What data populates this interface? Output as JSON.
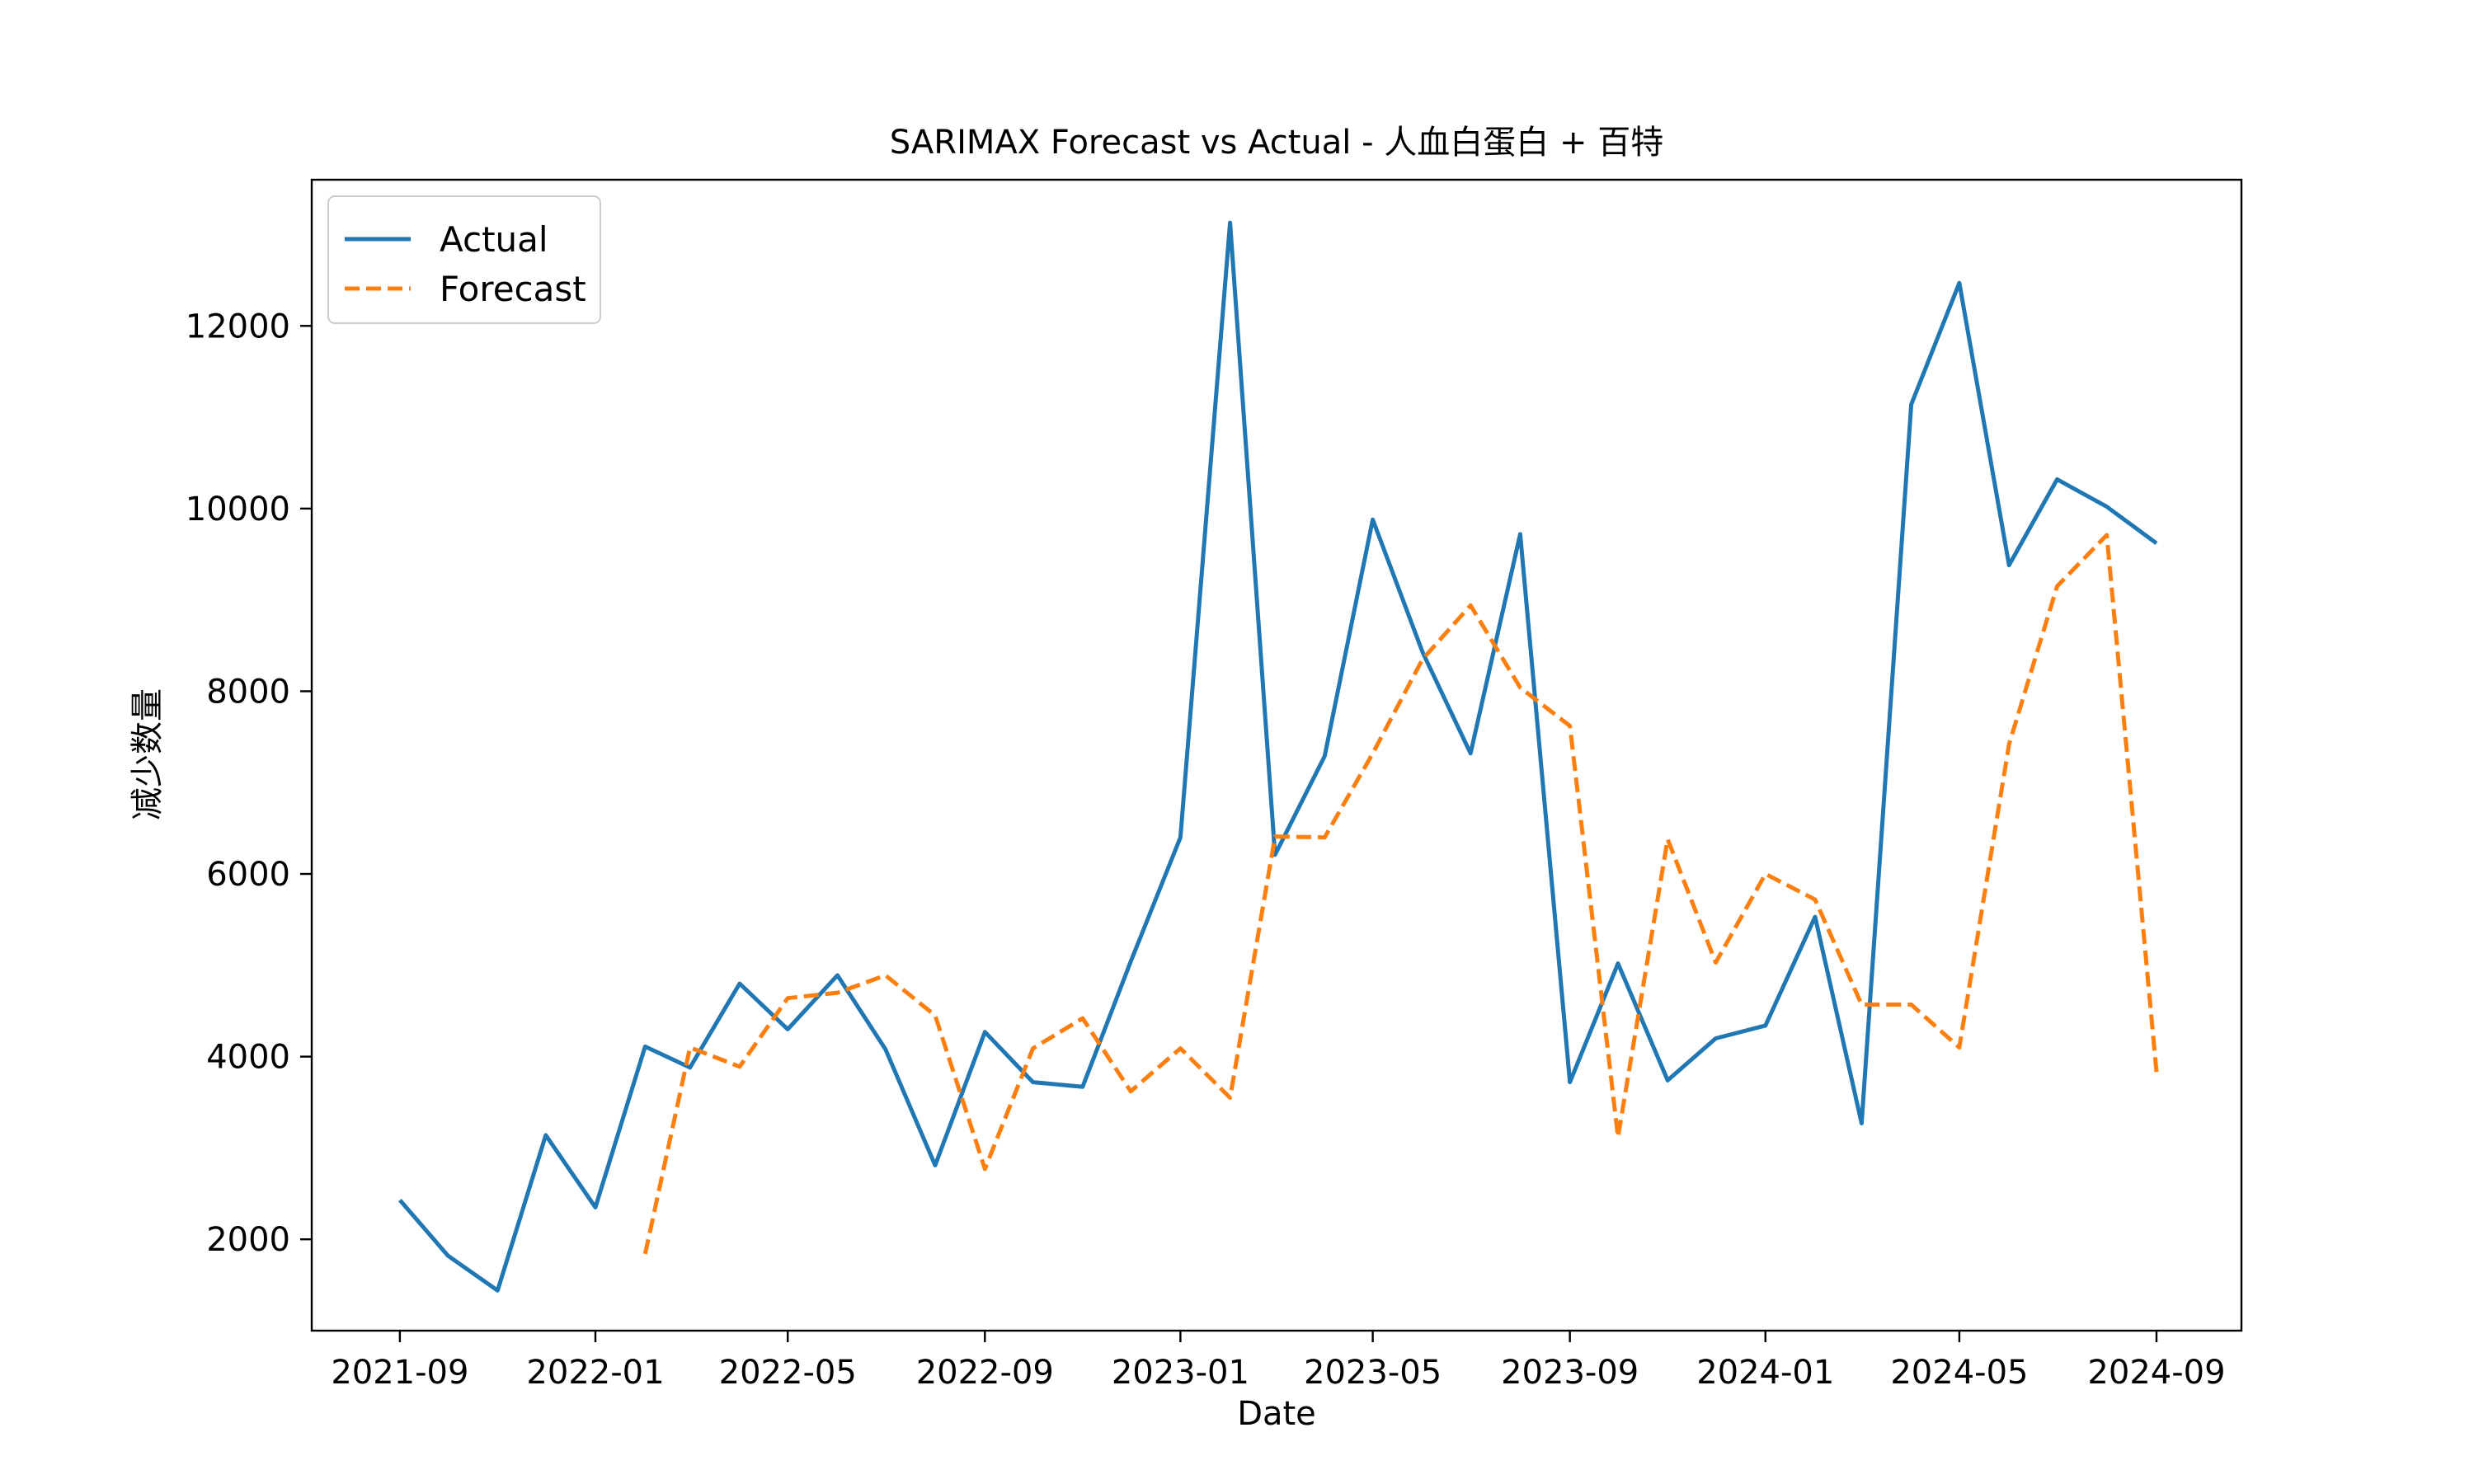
{
  "chart_data": {
    "type": "line",
    "title": "SARIMAX Forecast vs Actual - 人血白蛋白 + 百特",
    "xlabel": "Date",
    "ylabel": "减少数量",
    "x_ticks": [
      "2021-09",
      "2022-01",
      "2022-05",
      "2022-09",
      "2023-01",
      "2023-05",
      "2023-09",
      "2024-01",
      "2024-05",
      "2024-09"
    ],
    "y_ticks": [
      2000,
      4000,
      6000,
      8000,
      10000,
      12000
    ],
    "ylim": [
      1000,
      13600
    ],
    "xlim": [
      "2021-07-08",
      "2024-10-24"
    ],
    "legend_position": "top-left",
    "grid": false,
    "series": [
      {
        "name": "Actual",
        "color": "#1f77b4",
        "style": "solid",
        "points": [
          {
            "x": "2021-09",
            "y": 2430
          },
          {
            "x": "2021-10",
            "y": 1820
          },
          {
            "x": "2021-11",
            "y": 1440
          },
          {
            "x": "2021-12",
            "y": 3140
          },
          {
            "x": "2022-01",
            "y": 2350
          },
          {
            "x": "2022-02",
            "y": 4110
          },
          {
            "x": "2022-03",
            "y": 3880
          },
          {
            "x": "2022-04",
            "y": 4800
          },
          {
            "x": "2022-05",
            "y": 4300
          },
          {
            "x": "2022-06",
            "y": 4890
          },
          {
            "x": "2022-07",
            "y": 4080
          },
          {
            "x": "2022-08",
            "y": 2810
          },
          {
            "x": "2022-09",
            "y": 4270
          },
          {
            "x": "2022-10",
            "y": 3720
          },
          {
            "x": "2022-11",
            "y": 3670
          },
          {
            "x": "2022-12",
            "y": 5040
          },
          {
            "x": "2023-01",
            "y": 6400
          },
          {
            "x": "2023-02",
            "y": 13130
          },
          {
            "x": "2023-03",
            "y": 6210
          },
          {
            "x": "2023-04",
            "y": 7290
          },
          {
            "x": "2023-05",
            "y": 9880
          },
          {
            "x": "2023-06",
            "y": 8430
          },
          {
            "x": "2023-07",
            "y": 7320
          },
          {
            "x": "2023-08",
            "y": 9720
          },
          {
            "x": "2023-09",
            "y": 3720
          },
          {
            "x": "2023-10",
            "y": 5020
          },
          {
            "x": "2023-11",
            "y": 3740
          },
          {
            "x": "2023-12",
            "y": 4200
          },
          {
            "x": "2024-01",
            "y": 4340
          },
          {
            "x": "2024-02",
            "y": 5530
          },
          {
            "x": "2024-03",
            "y": 3270
          },
          {
            "x": "2024-04",
            "y": 11140
          },
          {
            "x": "2024-05",
            "y": 12470
          },
          {
            "x": "2024-06",
            "y": 9380
          },
          {
            "x": "2024-07",
            "y": 10320
          },
          {
            "x": "2024-08",
            "y": 10020
          },
          {
            "x": "2024-09",
            "y": 9620
          }
        ]
      },
      {
        "name": "Forecast",
        "color": "#ff7f0e",
        "style": "dashed",
        "points": [
          {
            "x": "2022-02",
            "y": 1840
          },
          {
            "x": "2022-03",
            "y": 4100
          },
          {
            "x": "2022-04",
            "y": 3890
          },
          {
            "x": "2022-05",
            "y": 4640
          },
          {
            "x": "2022-06",
            "y": 4700
          },
          {
            "x": "2022-07",
            "y": 4890
          },
          {
            "x": "2022-08",
            "y": 4450
          },
          {
            "x": "2022-09",
            "y": 2770
          },
          {
            "x": "2022-10",
            "y": 4090
          },
          {
            "x": "2022-11",
            "y": 4420
          },
          {
            "x": "2022-12",
            "y": 3620
          },
          {
            "x": "2023-01",
            "y": 4090
          },
          {
            "x": "2023-02",
            "y": 3550
          },
          {
            "x": "2023-03",
            "y": 6410
          },
          {
            "x": "2023-04",
            "y": 6400
          },
          {
            "x": "2023-05",
            "y": 7320
          },
          {
            "x": "2023-06",
            "y": 8350
          },
          {
            "x": "2023-07",
            "y": 8940
          },
          {
            "x": "2023-08",
            "y": 8040
          },
          {
            "x": "2023-09",
            "y": 7620
          },
          {
            "x": "2023-10",
            "y": 3120
          },
          {
            "x": "2023-11",
            "y": 6380
          },
          {
            "x": "2023-12",
            "y": 5030
          },
          {
            "x": "2024-01",
            "y": 6000
          },
          {
            "x": "2024-02",
            "y": 5720
          },
          {
            "x": "2024-03",
            "y": 4570
          },
          {
            "x": "2024-04",
            "y": 4570
          },
          {
            "x": "2024-05",
            "y": 4100
          },
          {
            "x": "2024-06",
            "y": 7420
          },
          {
            "x": "2024-07",
            "y": 9150
          },
          {
            "x": "2024-08",
            "y": 9710
          },
          {
            "x": "2024-09",
            "y": 3830
          }
        ]
      }
    ]
  }
}
